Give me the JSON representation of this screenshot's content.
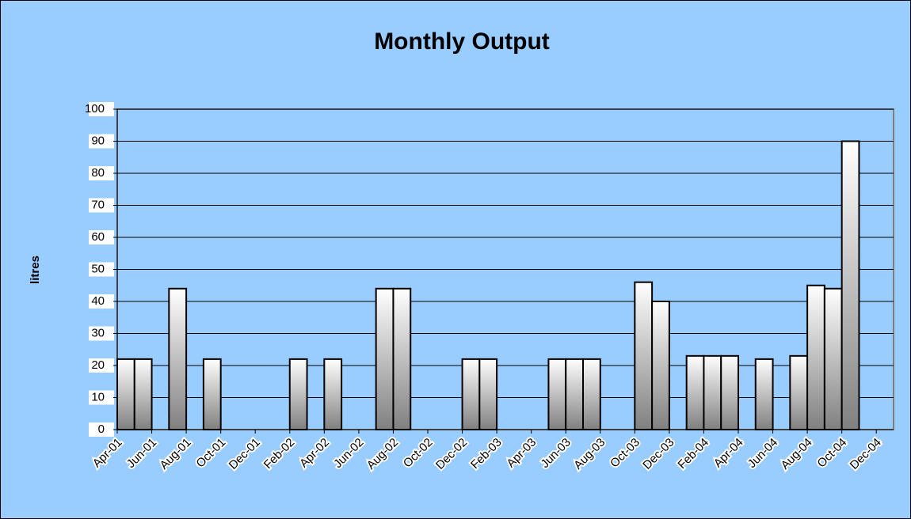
{
  "chart_data": {
    "type": "bar",
    "title": "Monthly Output",
    "y_label": "litres",
    "categories": [
      "Apr-01",
      null,
      "Jun-01",
      null,
      "Aug-01",
      null,
      "Oct-01",
      null,
      "Dec-01",
      null,
      "Feb-02",
      null,
      "Apr-02",
      null,
      "Jun-02",
      null,
      "Aug-02",
      null,
      "Oct-02",
      null,
      "Dec-02",
      null,
      "Feb-03",
      null,
      "Apr-03",
      null,
      "Jun-03",
      null,
      "Aug-03",
      null,
      "Oct-03",
      null,
      "Dec-03",
      null,
      "Feb-04",
      null,
      "Apr-04",
      null,
      "Jun-04",
      null,
      "Aug-04",
      null,
      "Oct-04",
      null,
      "Dec-04"
    ],
    "values": [
      22,
      22,
      null,
      44,
      null,
      22,
      null,
      null,
      null,
      null,
      22,
      null,
      22,
      null,
      null,
      44,
      44,
      null,
      null,
      null,
      22,
      22,
      null,
      null,
      null,
      22,
      22,
      22,
      null,
      null,
      46,
      40,
      null,
      23,
      23,
      23,
      null,
      22,
      null,
      23,
      45,
      44,
      90,
      null,
      null
    ],
    "ylim": [
      0,
      100
    ],
    "yticks": [
      0,
      10,
      20,
      30,
      40,
      50,
      60,
      70,
      80,
      90,
      100
    ],
    "grid": true
  }
}
